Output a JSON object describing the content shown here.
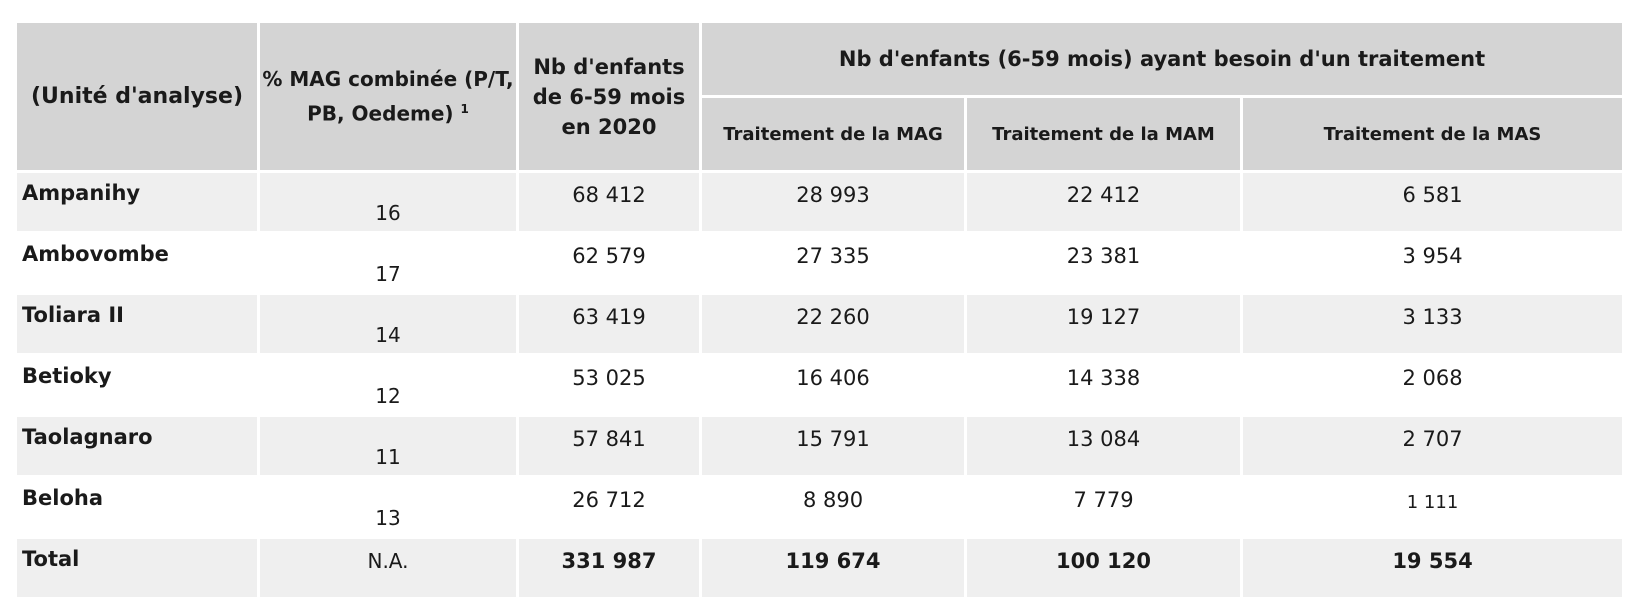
{
  "headers": {
    "unit": "(Unité d'analyse)",
    "mag_line1": "% MAG combinée (P/T,",
    "mag_line2": "PB, Oedeme)",
    "mag_sup": "1",
    "nb_line1": "Nb d'enfants",
    "nb_line2": "de 6-59 mois",
    "nb_line3": "en 2020",
    "group": "Nb d'enfants (6-59 mois) ayant besoin d'un traitement",
    "sub_mag": "Traitement de la MAG",
    "sub_mam": "Traitement de la MAM",
    "sub_mas": "Traitement de la MAS"
  },
  "rows": [
    {
      "unit": "Ampanihy",
      "mag": "16",
      "nb": "68 412",
      "t_mag": "28 993",
      "t_mam": "22 412",
      "t_mas": "6 581"
    },
    {
      "unit": "Ambovombe",
      "mag": "17",
      "nb": "62 579",
      "t_mag": "27 335",
      "t_mam": "23 381",
      "t_mas": "3 954"
    },
    {
      "unit": "Toliara II",
      "mag": "14",
      "nb": "63 419",
      "t_mag": "22 260",
      "t_mam": "19 127",
      "t_mas": "3 133"
    },
    {
      "unit": "Betioky",
      "mag": "12",
      "nb": "53 025",
      "t_mag": "16 406",
      "t_mam": "14 338",
      "t_mas": "2 068"
    },
    {
      "unit": "Taolagnaro",
      "mag": "11",
      "nb": "57 841",
      "t_mag": "15 791",
      "t_mam": "13 084",
      "t_mas": "2 707"
    },
    {
      "unit": "Beloha",
      "mag": "13",
      "nb": "26 712",
      "t_mag": "8 890",
      "t_mam": "7 779",
      "t_mas": "1 111"
    }
  ],
  "total": {
    "unit": "Total",
    "mag": "N.A.",
    "nb": "331 987",
    "t_mag": "119 674",
    "t_mam": "100 120",
    "t_mas": "19 554"
  }
}
